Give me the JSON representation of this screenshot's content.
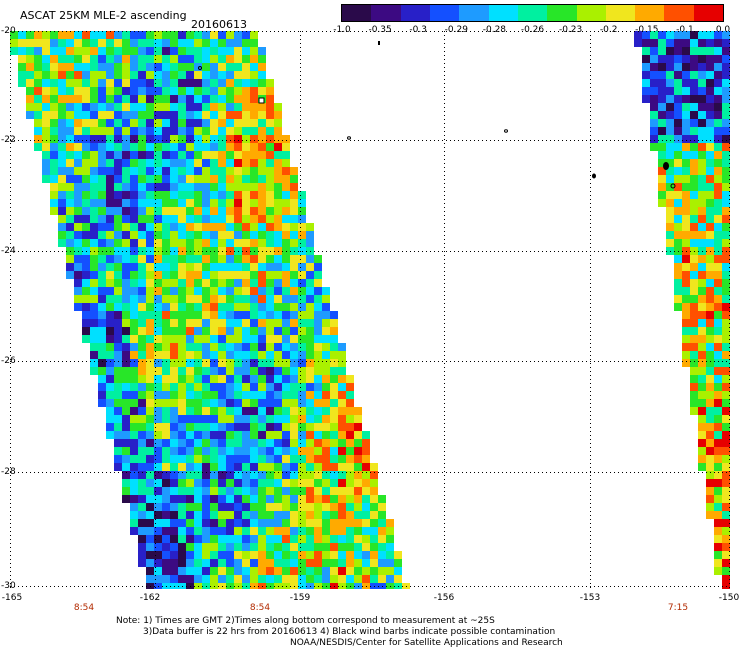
{
  "header": {
    "title": "ASCAT 25KM MLE-2 ascending",
    "date": "20160613"
  },
  "colorbar": {
    "labels": [
      "-1.0",
      "-0.35",
      "-0.3",
      "-0.29",
      "-0.28",
      "-0.26",
      "-0.23",
      "-0.2",
      "-0.15",
      "-0.1",
      "0.0"
    ],
    "colors": [
      "#2a0a4a",
      "#3c0a82",
      "#2820c8",
      "#1450ff",
      "#1e9bff",
      "#00e0ff",
      "#00f0a0",
      "#28e628",
      "#aaf000",
      "#f0e61e",
      "#ffaa00",
      "#ff5000",
      "#e60000"
    ]
  },
  "map": {
    "lat_labels": [
      "-20",
      "-22",
      "-24",
      "-26",
      "-28",
      "-30"
    ],
    "lon_labels": [
      "-165",
      "-162",
      "-159",
      "-156",
      "-153",
      "-150"
    ],
    "swath_times": [
      "8:54",
      "8:54",
      "7:15"
    ]
  },
  "notes": [
    "Note: 1) Times are GMT 2)Times along bottom correspond to measurement at ~25S",
    "3)Data buffer is 22 hrs from 20160613 4) Black wind barbs indicate possible contamination",
    "NOAA/NESDIS/Center for Satellite Applications and Research"
  ]
}
